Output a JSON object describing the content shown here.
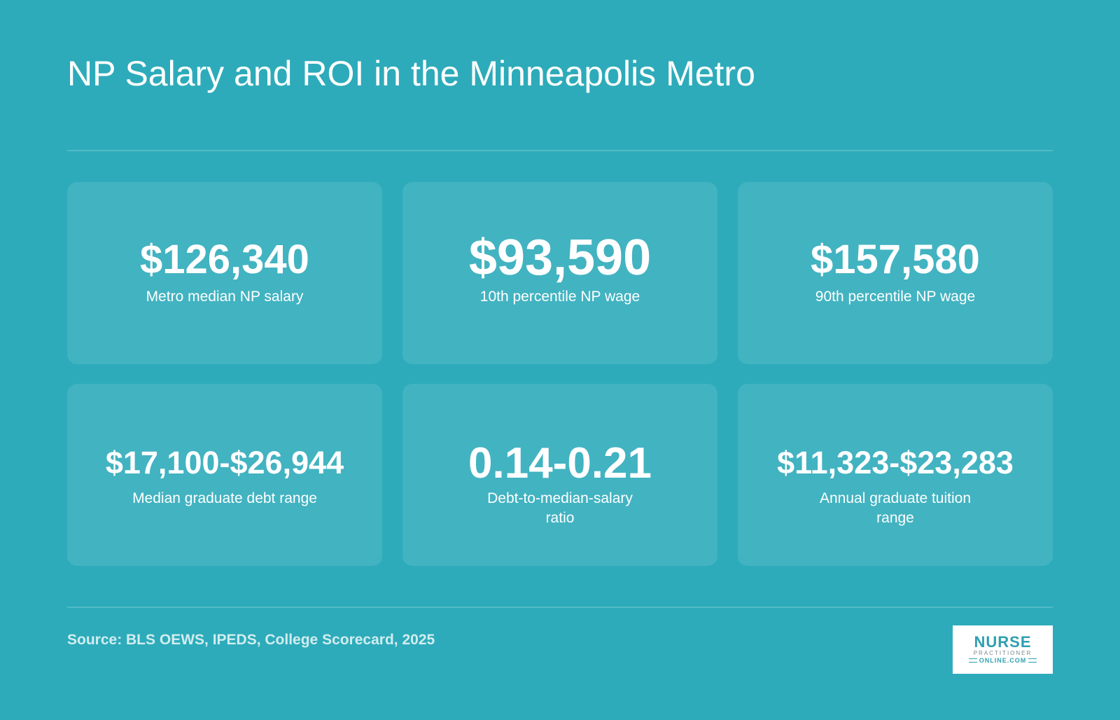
{
  "title": "NP Salary and ROI in the Minneapolis Metro",
  "cards": [
    {
      "value": "$126,340",
      "label": "Metro median NP salary"
    },
    {
      "value": "$93,590",
      "label": "10th percentile NP wage"
    },
    {
      "value": "$157,580",
      "label": "90th percentile NP wage"
    },
    {
      "value": "$17,100-$26,944",
      "label": "Median graduate debt range"
    },
    {
      "value": "0.14-0.21",
      "label": "Debt-to-median-salary ratio"
    },
    {
      "value": "$11,323-$23,283",
      "label": "Annual graduate tuition range"
    }
  ],
  "source": "Source: BLS OEWS, IPEDS, College Scorecard, 2025",
  "logo": {
    "line1": "NURSE",
    "line2": "PRACTITIONER",
    "line3": "ONLINE.COM"
  },
  "colors": {
    "background": "#2dabba",
    "card": "rgba(255,255,255,0.10)",
    "text": "#ffffff",
    "logo_accent": "#2f9fb0"
  }
}
